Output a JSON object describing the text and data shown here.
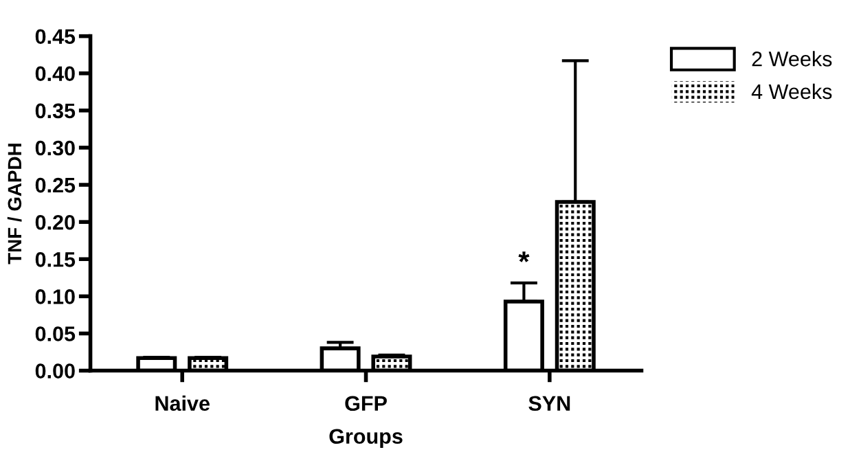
{
  "chart_data": {
    "type": "bar",
    "xlabel": "Groups",
    "ylabel": "TNF / GAPDH",
    "categories": [
      "Naive",
      "GFP",
      "SYN"
    ],
    "series": [
      {
        "name": "2 Weeks",
        "color": "#ffffff",
        "values": [
          0.017,
          0.03,
          0.093
        ],
        "errors": [
          [
            0.017,
            0.018
          ],
          [
            0.03,
            0.038
          ],
          [
            0.093,
            0.118
          ]
        ]
      },
      {
        "name": "4 Weeks",
        "color": "#000000",
        "values": [
          0.017,
          0.019,
          0.227
        ],
        "errors": [
          [
            0.017,
            0.018
          ],
          [
            0.019,
            0.021
          ],
          [
            0.227,
            0.417
          ]
        ]
      }
    ],
    "ylim": [
      0,
      0.45
    ],
    "yticks": [
      {
        "value": 0,
        "label": "0.00"
      },
      {
        "value": 0.05,
        "label": "0.05"
      },
      {
        "value": 0.1,
        "label": "0.10"
      },
      {
        "value": 0.15,
        "label": "0.15"
      },
      {
        "value": 0.2,
        "label": "0.20"
      },
      {
        "value": 0.25,
        "label": "0.25"
      },
      {
        "value": 0.3,
        "label": "0.30"
      },
      {
        "value": 0.35,
        "label": "0.35"
      },
      {
        "value": 0.4,
        "label": "0.40"
      },
      {
        "value": 0.45,
        "label": "0.45"
      }
    ],
    "annotations": [
      "*"
    ],
    "legend": "top right",
    "grid": false
  }
}
